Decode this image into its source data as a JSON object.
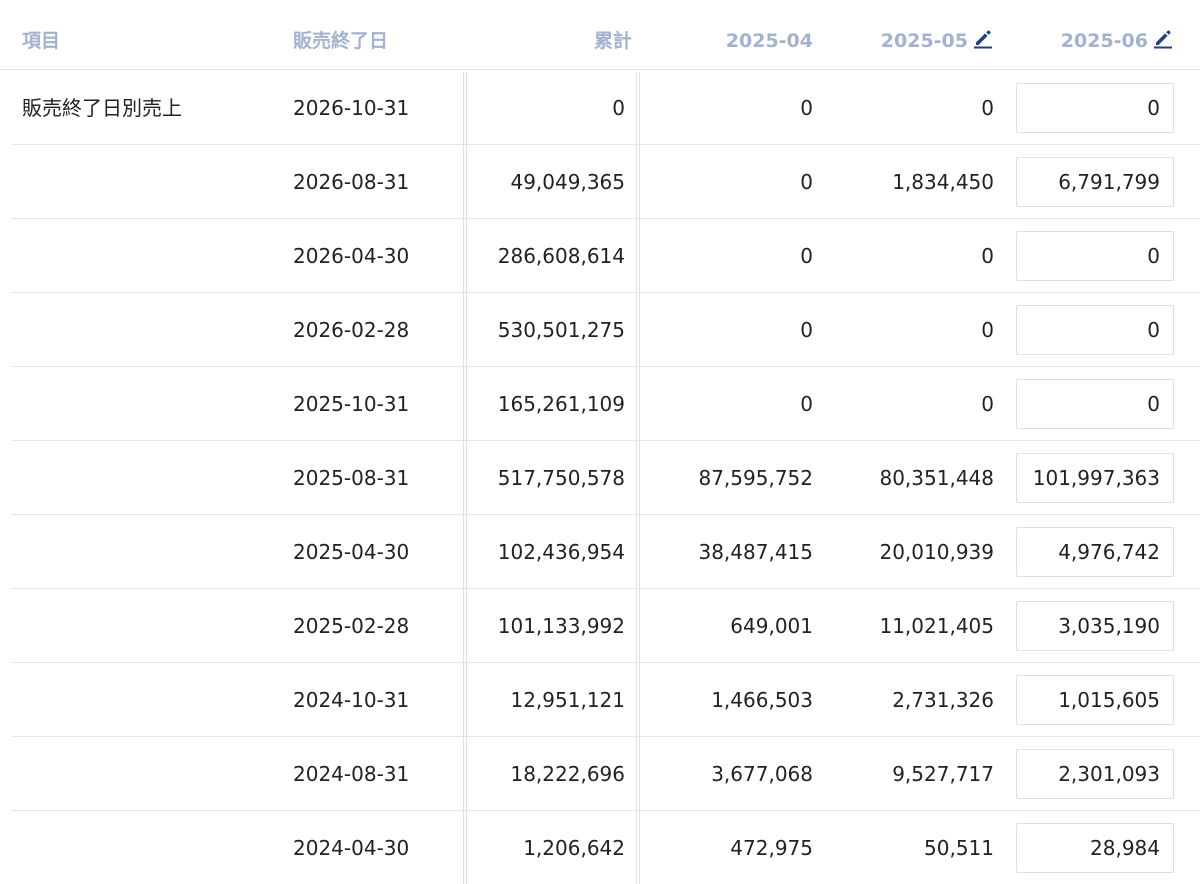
{
  "header": {
    "item": "項目",
    "end_date": "販売終了日",
    "total": "累計",
    "months": [
      "2025-04",
      "2025-05",
      "2025-06"
    ],
    "editable_months": [
      "2025-05",
      "2025-06"
    ]
  },
  "category_label": "販売終了日別売上",
  "rows": [
    {
      "end_date": "2026-10-31",
      "total": "0",
      "m2025_04": "0",
      "m2025_05": "0",
      "m2025_06": "0"
    },
    {
      "end_date": "2026-08-31",
      "total": "49,049,365",
      "m2025_04": "0",
      "m2025_05": "1,834,450",
      "m2025_06": "6,791,799"
    },
    {
      "end_date": "2026-04-30",
      "total": "286,608,614",
      "m2025_04": "0",
      "m2025_05": "0",
      "m2025_06": "0"
    },
    {
      "end_date": "2026-02-28",
      "total": "530,501,275",
      "m2025_04": "0",
      "m2025_05": "0",
      "m2025_06": "0"
    },
    {
      "end_date": "2025-10-31",
      "total": "165,261,109",
      "m2025_04": "0",
      "m2025_05": "0",
      "m2025_06": "0"
    },
    {
      "end_date": "2025-08-31",
      "total": "517,750,578",
      "m2025_04": "87,595,752",
      "m2025_05": "80,351,448",
      "m2025_06": "101,997,363"
    },
    {
      "end_date": "2025-04-30",
      "total": "102,436,954",
      "m2025_04": "38,487,415",
      "m2025_05": "20,010,939",
      "m2025_06": "4,976,742"
    },
    {
      "end_date": "2025-02-28",
      "total": "101,133,992",
      "m2025_04": "649,001",
      "m2025_05": "11,021,405",
      "m2025_06": "3,035,190"
    },
    {
      "end_date": "2024-10-31",
      "total": "12,951,121",
      "m2025_04": "1,466,503",
      "m2025_05": "2,731,326",
      "m2025_06": "1,015,605"
    },
    {
      "end_date": "2024-08-31",
      "total": "18,222,696",
      "m2025_04": "3,677,068",
      "m2025_05": "9,527,717",
      "m2025_06": "2,301,093"
    },
    {
      "end_date": "2024-04-30",
      "total": "1,206,642",
      "m2025_04": "472,975",
      "m2025_05": "50,511",
      "m2025_06": "28,984"
    }
  ],
  "icons": {
    "edit": "pencil-icon"
  },
  "colors": {
    "header_text": "#a3b2cf",
    "edit_icon": "#1f3f86",
    "border": "#dcdfe6",
    "body_text": "#222222"
  }
}
